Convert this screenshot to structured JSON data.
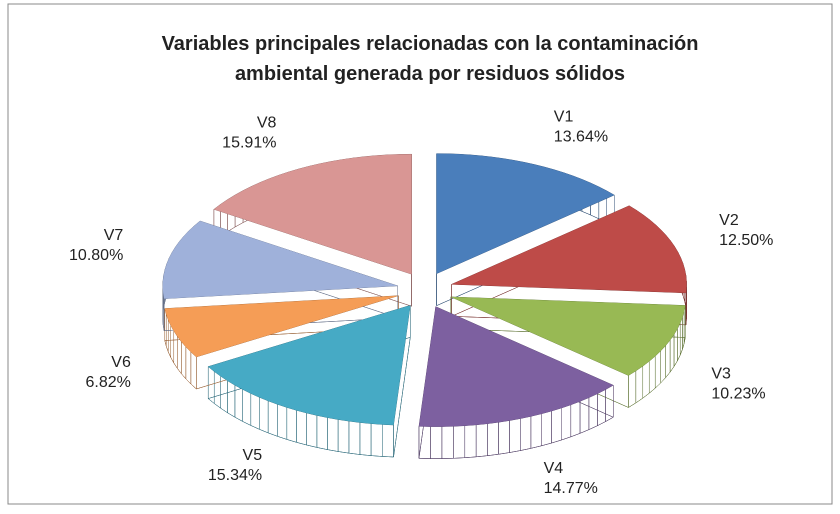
{
  "chart_data": {
    "type": "pie3d",
    "title": [
      "Variables principales relacionadas con la contaminación",
      "ambiental generada por residuos sólidos"
    ],
    "categories": [
      "V1",
      "V2",
      "V3",
      "V4",
      "V5",
      "V6",
      "V7",
      "V8"
    ],
    "values": [
      13.64,
      12.5,
      10.23,
      14.77,
      15.34,
      6.82,
      10.8,
      15.91
    ],
    "value_labels": [
      "13.64%",
      "12.50%",
      "10.23%",
      "14.77%",
      "15.34%",
      "6.82%",
      "10.80%",
      "15.91%"
    ],
    "colors": [
      "#4a7ebb",
      "#be4b48",
      "#98b954",
      "#7d60a0",
      "#46aac5",
      "#f59d56",
      "#9fb1da",
      "#d99694"
    ]
  }
}
